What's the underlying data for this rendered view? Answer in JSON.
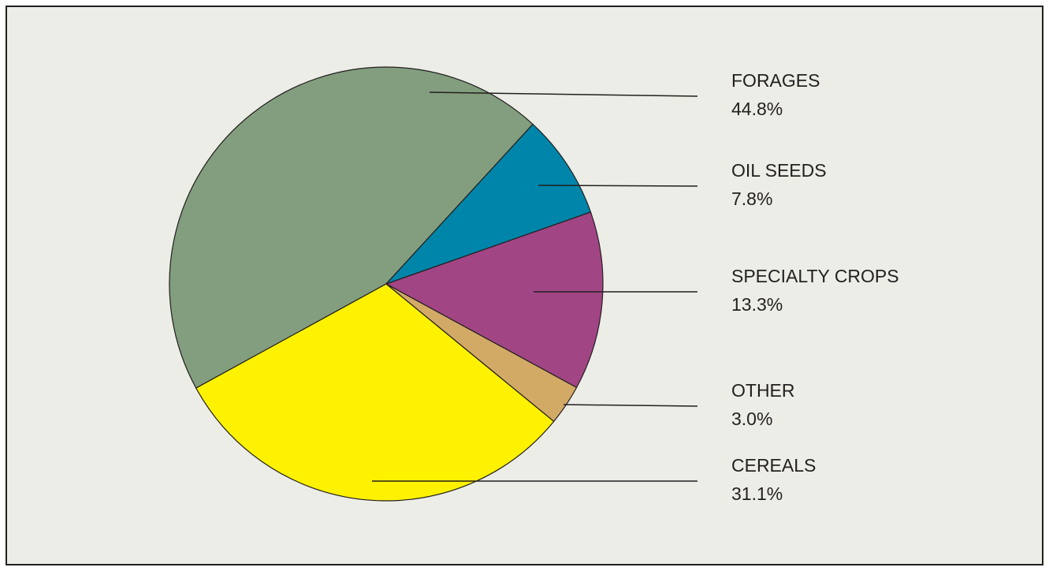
{
  "chart_data": {
    "type": "pie",
    "categories": [
      "FORAGES",
      "OIL SEEDS",
      "SPECIALTY CROPS",
      "OTHER",
      "CEREALS"
    ],
    "values": [
      44.8,
      7.8,
      13.3,
      3.0,
      31.1
    ],
    "value_labels": [
      "44.8%",
      "7.8%",
      "13.3%",
      "3.0%",
      "31.1%"
    ],
    "colors": [
      "#829e7e",
      "#0085aa",
      "#a24584",
      "#d3aa65",
      "#fff200"
    ]
  }
}
